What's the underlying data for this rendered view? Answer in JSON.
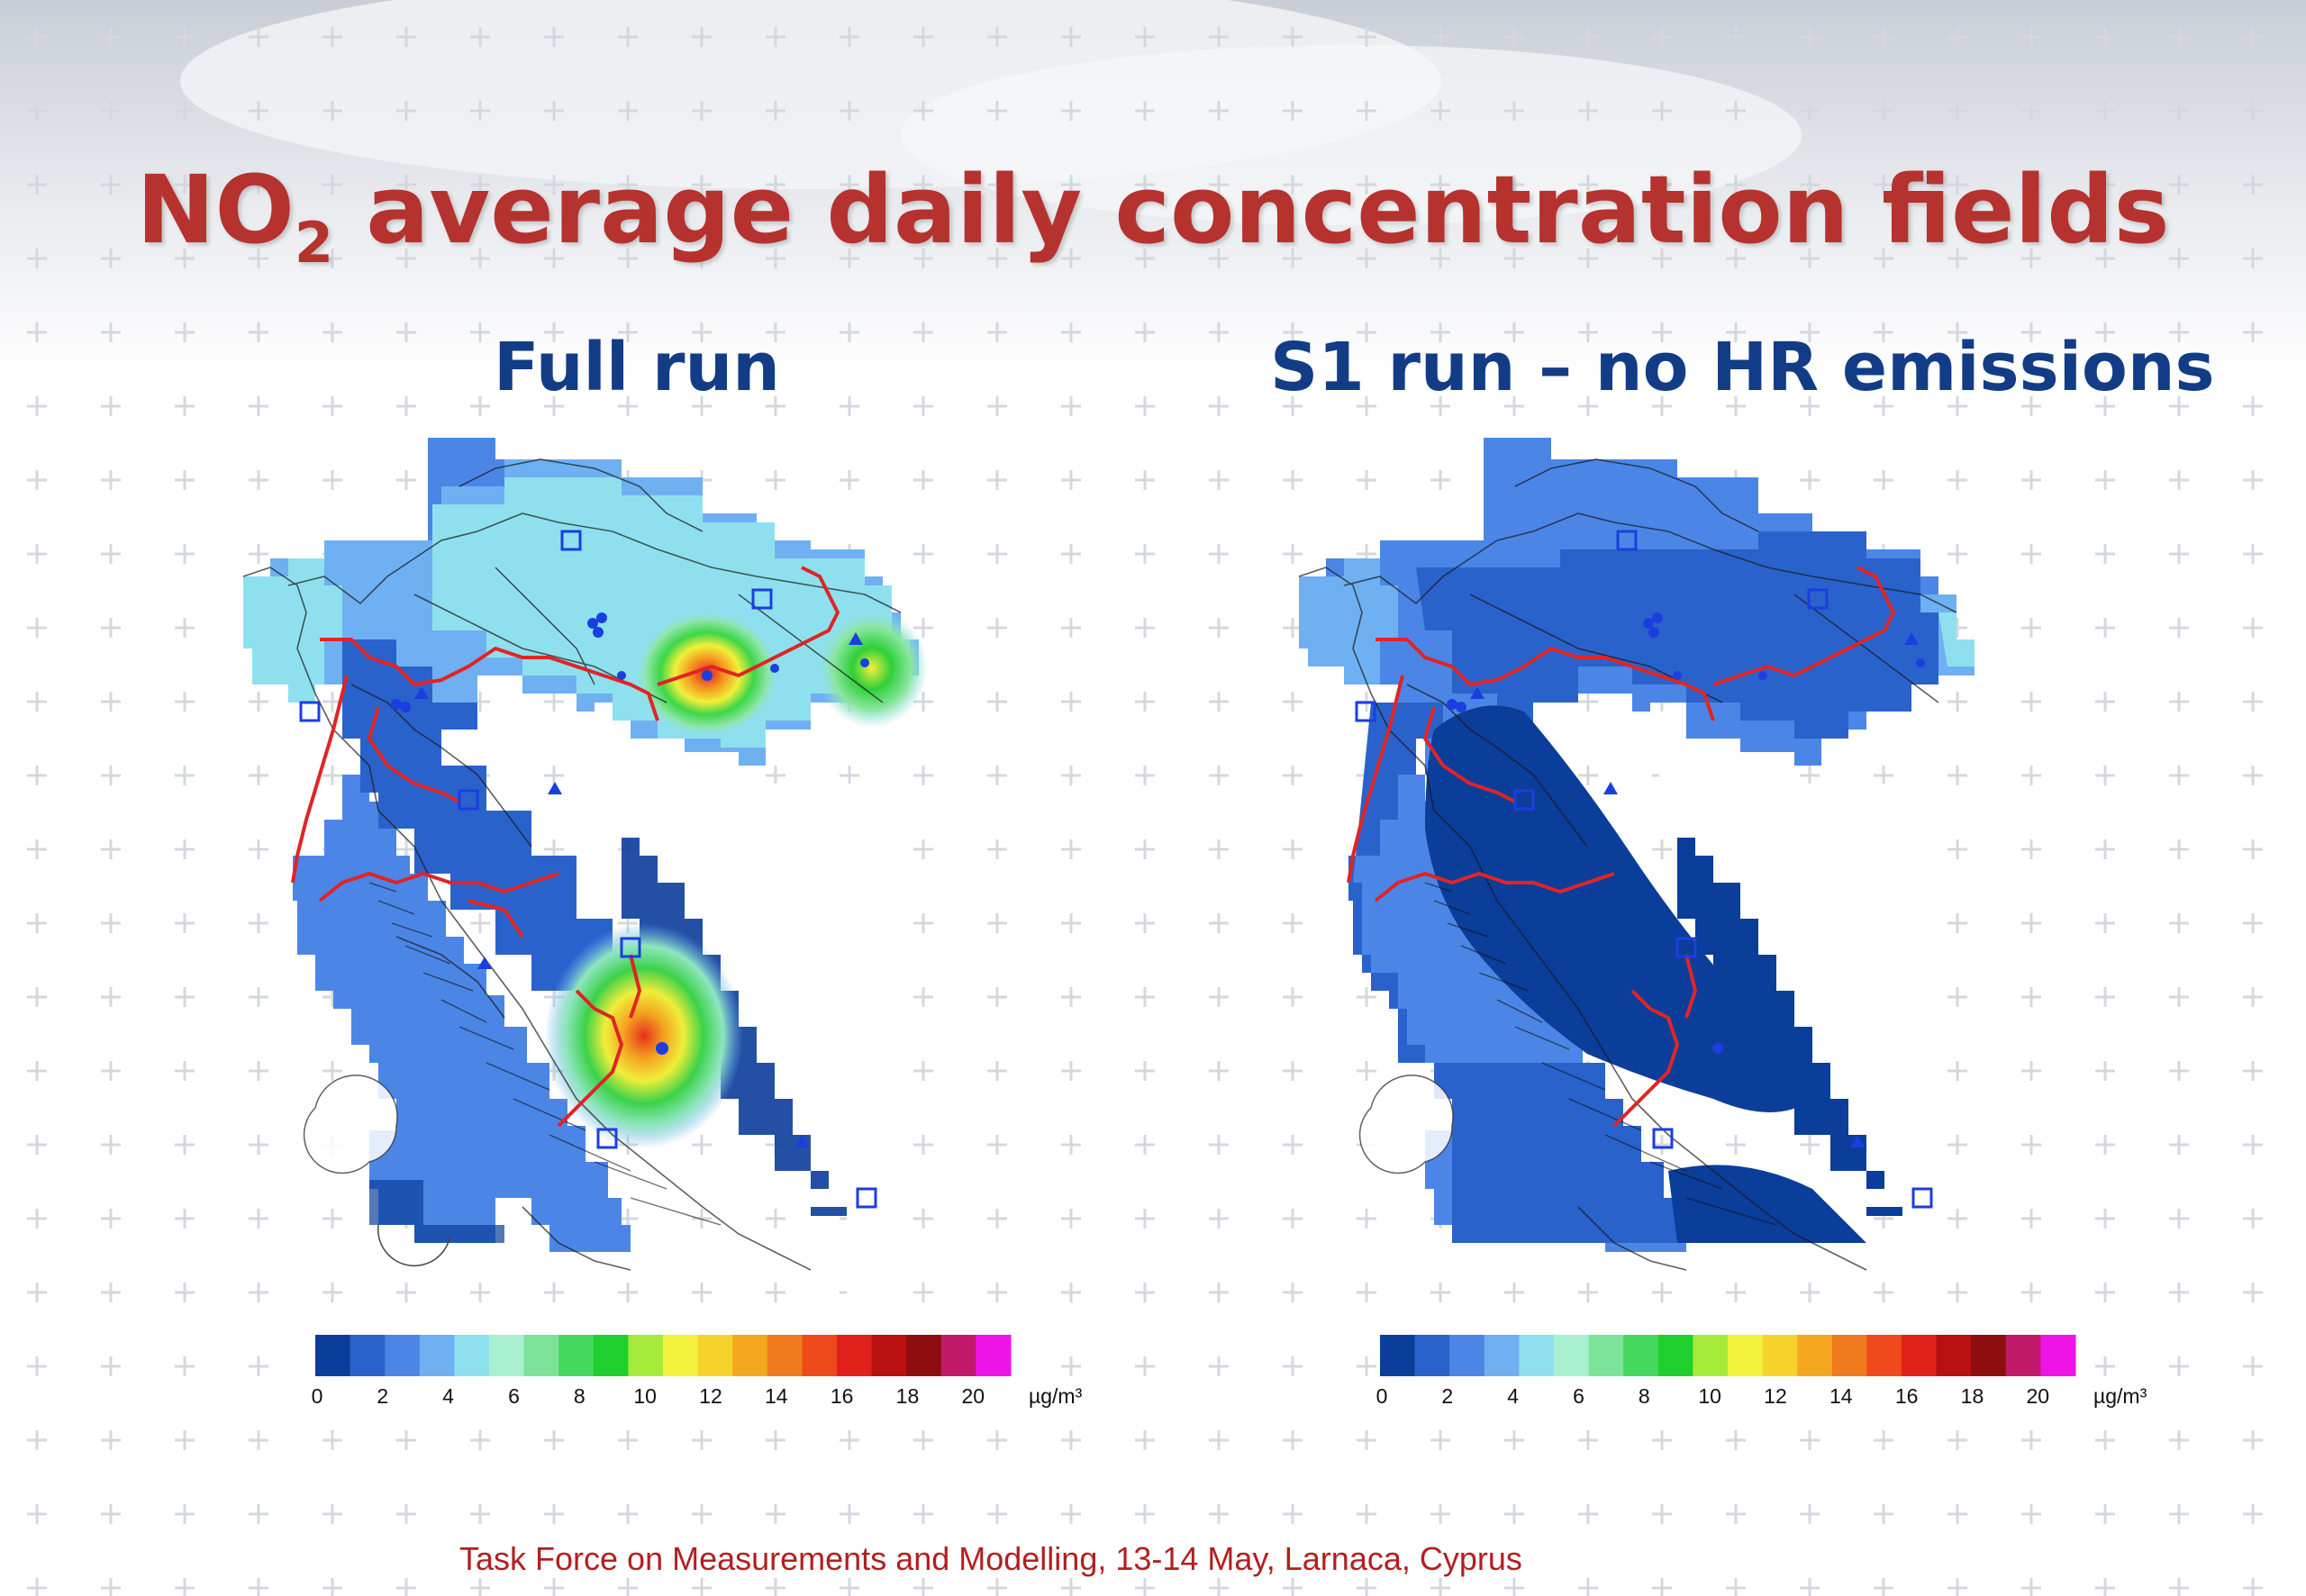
{
  "slide": {
    "title_main": "NO",
    "title_sub": "2",
    "title_rest": " average daily concentration fields",
    "footer": "Task Force on Measurements and Modelling, 13-14 May, Larnaca, Cyprus"
  },
  "panels": [
    {
      "title": "Full run",
      "hotspots": [
        "north",
        "east",
        "south"
      ]
    },
    {
      "title": "S1 run – no HR emissions",
      "hotspots": []
    }
  ],
  "colorbar": {
    "ticks": [
      "0",
      "2",
      "4",
      "6",
      "8",
      "10",
      "12",
      "14",
      "16",
      "18",
      "20"
    ],
    "unit": "µg/m³",
    "colors": [
      "#0b3d9a",
      "#2a62cc",
      "#4b86e6",
      "#6fb0f2",
      "#8fe0ee",
      "#a8f0d0",
      "#7ee39a",
      "#46d85e",
      "#1fcf2e",
      "#a6ea3c",
      "#f2f23c",
      "#f6d32a",
      "#f4a81f",
      "#f07a1e",
      "#ee4a1c",
      "#e0201a",
      "#b80f0f",
      "#8e0d10",
      "#c21a6a",
      "#ee14e8"
    ]
  },
  "colors": {
    "title": "#b5322e",
    "panel_title": "#123c86",
    "border_red": "#e02424",
    "station_blue": "#1b3ee0"
  }
}
